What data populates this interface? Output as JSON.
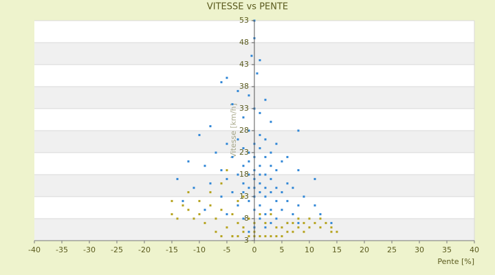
{
  "chart_data": {
    "type": "scatter",
    "title": "VITESSE vs PENTE",
    "x_label": "Pente [%]",
    "y_label": "Vitesse [km/h]",
    "xlim": [
      -40,
      40
    ],
    "xticks": [
      -40,
      -35,
      -30,
      -25,
      -20,
      -15,
      -10,
      -5,
      0,
      5,
      10,
      15,
      20,
      25,
      30,
      35,
      40
    ],
    "ylim": [
      3,
      53
    ],
    "yticks": [
      3,
      8,
      13,
      18,
      23,
      28,
      33,
      38,
      43,
      48,
      53
    ],
    "grid": true,
    "series": [
      {
        "color": "#2f86d6",
        "x": [
          0,
          0,
          -0.5,
          1,
          0.5,
          -5,
          -6,
          -3,
          -1,
          2,
          -4,
          0,
          1,
          -2,
          3,
          -8,
          -10,
          8,
          -1,
          1,
          2,
          -3,
          -5,
          4,
          0,
          -2,
          1,
          3,
          -7,
          -1,
          6,
          0,
          2,
          -4,
          -12,
          -9,
          5,
          -1,
          1,
          3,
          -2,
          0,
          4,
          -6,
          8,
          -3,
          1,
          2,
          -1,
          11,
          -14,
          0,
          3,
          -5,
          6,
          -2,
          1,
          -8,
          4,
          0,
          2,
          -1,
          7,
          -11,
          -4,
          3,
          1,
          5,
          -2,
          0,
          9,
          -6,
          2,
          -13,
          4,
          -1,
          6,
          1,
          -3,
          11,
          8,
          3,
          -9,
          0,
          5,
          2,
          -5,
          12,
          7,
          1,
          -2,
          4,
          10,
          3,
          14,
          6,
          0,
          2,
          -1,
          8
        ],
        "values": [
          53,
          49,
          45,
          44,
          41,
          40,
          39,
          37,
          36,
          35,
          34,
          33,
          32,
          31,
          30,
          29,
          27,
          28,
          28,
          27,
          26,
          26,
          25,
          25,
          25,
          24,
          24,
          23,
          23,
          23,
          22,
          22,
          22,
          22,
          21,
          20,
          21,
          21,
          20,
          20,
          20,
          19,
          19,
          19,
          19,
          18,
          18,
          18,
          18,
          17,
          17,
          17,
          17,
          17,
          16,
          16,
          16,
          16,
          15,
          15,
          15,
          15,
          15,
          15,
          14,
          14,
          14,
          14,
          14,
          13,
          13,
          13,
          13,
          12,
          12,
          12,
          12,
          11,
          11,
          11,
          11,
          10,
          10,
          10,
          10,
          9,
          9,
          9,
          9,
          8,
          8,
          8,
          8,
          7,
          7,
          7,
          6,
          6,
          5,
          7
        ]
      },
      {
        "color": "#b5a21c",
        "x": [
          -15,
          -13,
          -15,
          -12,
          -10,
          -14,
          -11,
          -8,
          -6,
          -7,
          -9,
          -4,
          -3,
          -5,
          -2,
          -1,
          0,
          1,
          2,
          3,
          4,
          5,
          6,
          -3,
          -4,
          -6,
          7,
          8,
          9,
          10,
          11,
          12,
          13,
          14,
          15,
          10,
          8,
          6,
          4,
          2,
          0,
          -1,
          -3,
          -6,
          -8,
          -5,
          -2,
          1,
          3,
          9,
          12,
          14,
          -10,
          -12,
          -4,
          5,
          7,
          0,
          -2,
          -7
        ],
        "values": [
          12,
          11,
          9,
          10,
          9,
          8,
          8,
          11,
          10,
          8,
          7,
          9,
          7,
          6,
          5,
          4,
          4,
          4,
          4,
          4,
          4,
          4,
          5,
          4,
          4,
          4,
          5,
          6,
          7,
          8,
          7,
          6,
          7,
          6,
          5,
          6,
          8,
          7,
          6,
          7,
          7,
          8,
          12,
          16,
          14,
          19,
          13,
          9,
          9,
          5,
          8,
          5,
          12,
          14,
          4,
          6,
          7,
          5,
          6,
          5
        ]
      }
    ]
  }
}
